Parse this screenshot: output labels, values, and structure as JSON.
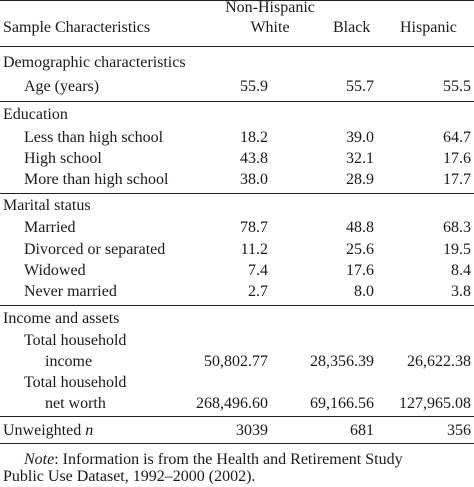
{
  "header": {
    "label_col": "Sample Characteristics",
    "col1_line1": "Non-Hispanic",
    "col1_line2": "White",
    "col2": "Black",
    "col3": "Hispanic"
  },
  "sections": {
    "demographic": "Demographic characteristics",
    "education": "Education",
    "marital": "Marital status",
    "income": "Income and assets"
  },
  "rows": {
    "age": {
      "label": "Age (years)",
      "white": "55.9",
      "black": "55.7",
      "hispanic": "55.5"
    },
    "less_hs": {
      "label": "Less than high school",
      "white": "18.2",
      "black": "39.0",
      "hispanic": "64.7"
    },
    "hs": {
      "label": "High school",
      "white": "43.8",
      "black": "32.1",
      "hispanic": "17.6"
    },
    "more_hs": {
      "label": "More than high school",
      "white": "38.0",
      "black": "28.9",
      "hispanic": "17.7"
    },
    "married": {
      "label": "Married",
      "white": "78.7",
      "black": "48.8",
      "hispanic": "68.3"
    },
    "divorced": {
      "label": "Divorced or separated",
      "white": "11.2",
      "black": "25.6",
      "hispanic": "19.5"
    },
    "widowed": {
      "label": "Widowed",
      "white": "7.4",
      "black": "17.6",
      "hispanic": "8.4"
    },
    "never": {
      "label": "Never married",
      "white": "2.7",
      "black": "8.0",
      "hispanic": "3.8"
    },
    "income": {
      "label_line1": "Total household",
      "label_line2": "income",
      "white": "50,802.77",
      "black": "28,356.39",
      "hispanic": "26,622.38"
    },
    "networth": {
      "label_line1": "Total household",
      "label_line2": "net worth",
      "white": "268,496.60",
      "black": "69,166.56",
      "hispanic": "127,965.08"
    },
    "n": {
      "label": "Unweighted",
      "label_n": "n",
      "white": "3039",
      "black": "681",
      "hispanic": "356"
    }
  },
  "note": {
    "label": "Note",
    "text_line1": ": Information is from the Health and Retirement Study",
    "text_line2": "Public Use Dataset, 1992–2000 (2002)."
  }
}
